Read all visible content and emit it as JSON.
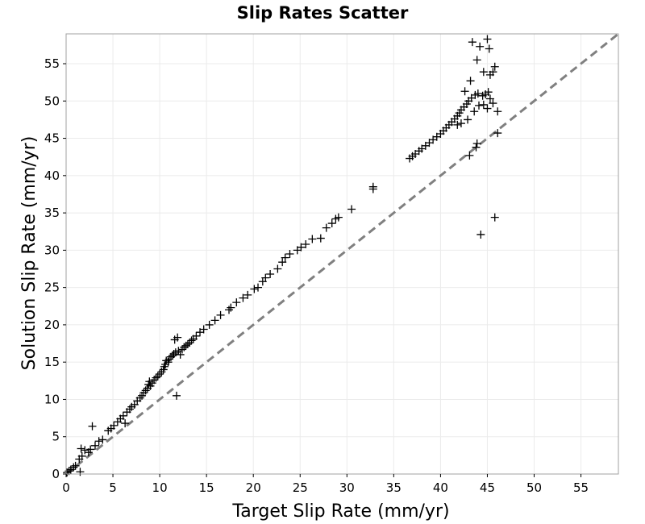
{
  "chart_data": {
    "type": "scatter",
    "title": "Slip Rates Scatter",
    "xlabel": "Target Slip Rate (mm/yr)",
    "ylabel": "Solution Slip Rate (mm/yr)",
    "xlim": [
      0,
      59
    ],
    "ylim": [
      0,
      59
    ],
    "x_ticks": [
      0,
      5,
      10,
      15,
      20,
      25,
      30,
      35,
      40,
      45,
      50,
      55
    ],
    "y_ticks": [
      0,
      5,
      10,
      15,
      20,
      25,
      30,
      35,
      40,
      45,
      50,
      55
    ],
    "grid": true,
    "legend": "none",
    "marker": "plus",
    "colors": {
      "points": "#000000",
      "reference_line": "#808080",
      "grid": "#ebebeb",
      "frame": "#a0a0a0"
    },
    "reference_line": {
      "style": "dashed",
      "points": [
        [
          0,
          0
        ],
        [
          59,
          59
        ]
      ]
    },
    "series": [
      {
        "points": [
          [
            0.1,
            0.2
          ],
          [
            0.3,
            0.4
          ],
          [
            0.5,
            0.6
          ],
          [
            0.8,
            0.9
          ],
          [
            1.0,
            1.1
          ],
          [
            1.5,
            0.3
          ],
          [
            1.4,
            2.0
          ],
          [
            1.7,
            2.4
          ],
          [
            1.6,
            3.4
          ],
          [
            2.0,
            3.2
          ],
          [
            2.4,
            2.9
          ],
          [
            2.6,
            3.3
          ],
          [
            2.8,
            6.4
          ],
          [
            3.1,
            3.8
          ],
          [
            3.5,
            4.4
          ],
          [
            3.9,
            4.6
          ],
          [
            4.5,
            5.8
          ],
          [
            4.8,
            6.1
          ],
          [
            5.1,
            6.5
          ],
          [
            5.5,
            7.0
          ],
          [
            5.8,
            7.4
          ],
          [
            6.1,
            7.8
          ],
          [
            6.3,
            6.8
          ],
          [
            6.5,
            8.3
          ],
          [
            6.8,
            8.7
          ],
          [
            7.0,
            9.0
          ],
          [
            7.3,
            9.3
          ],
          [
            7.6,
            9.8
          ],
          [
            7.9,
            10.2
          ],
          [
            8.1,
            10.5
          ],
          [
            8.3,
            10.9
          ],
          [
            8.5,
            11.2
          ],
          [
            8.7,
            11.5
          ],
          [
            8.8,
            12.0
          ],
          [
            8.9,
            12.4
          ],
          [
            9.0,
            11.8
          ],
          [
            9.2,
            12.2
          ],
          [
            9.4,
            12.6
          ],
          [
            9.6,
            12.9
          ],
          [
            9.8,
            13.1
          ],
          [
            10.0,
            13.4
          ],
          [
            10.2,
            13.7
          ],
          [
            10.4,
            14.0
          ],
          [
            10.5,
            14.4
          ],
          [
            10.6,
            14.7
          ],
          [
            10.7,
            15.2
          ],
          [
            10.9,
            15.0
          ],
          [
            11.0,
            15.4
          ],
          [
            11.2,
            15.7
          ],
          [
            11.4,
            15.9
          ],
          [
            11.5,
            16.1
          ],
          [
            11.7,
            16.3
          ],
          [
            11.8,
            10.5
          ],
          [
            11.6,
            18.0
          ],
          [
            11.9,
            18.3
          ],
          [
            12.0,
            16.5
          ],
          [
            12.2,
            16.0
          ],
          [
            12.4,
            16.7
          ],
          [
            12.6,
            17.0
          ],
          [
            12.8,
            17.2
          ],
          [
            13.0,
            17.4
          ],
          [
            13.2,
            17.6
          ],
          [
            13.4,
            17.9
          ],
          [
            13.6,
            18.1
          ],
          [
            13.9,
            18.5
          ],
          [
            14.3,
            19.0
          ],
          [
            14.7,
            19.4
          ],
          [
            15.3,
            20.0
          ],
          [
            15.9,
            20.6
          ],
          [
            16.5,
            21.3
          ],
          [
            17.4,
            22.0
          ],
          [
            17.6,
            22.3
          ],
          [
            18.2,
            23.0
          ],
          [
            18.9,
            23.6
          ],
          [
            19.4,
            24.0
          ],
          [
            20.1,
            24.8
          ],
          [
            20.5,
            25.0
          ],
          [
            21.0,
            25.8
          ],
          [
            21.3,
            26.3
          ],
          [
            21.8,
            26.8
          ],
          [
            22.6,
            27.5
          ],
          [
            23.1,
            28.4
          ],
          [
            23.4,
            29.0
          ],
          [
            23.9,
            29.5
          ],
          [
            24.7,
            30.0
          ],
          [
            25.1,
            30.4
          ],
          [
            25.6,
            30.8
          ],
          [
            26.3,
            31.5
          ],
          [
            27.2,
            31.6
          ],
          [
            27.8,
            33.0
          ],
          [
            28.4,
            33.6
          ],
          [
            28.8,
            34.2
          ],
          [
            29.1,
            34.4
          ],
          [
            30.5,
            35.5
          ],
          [
            32.8,
            38.2
          ],
          [
            32.8,
            38.5
          ],
          [
            36.7,
            42.3
          ],
          [
            37.0,
            42.6
          ],
          [
            37.3,
            42.9
          ],
          [
            37.7,
            43.3
          ],
          [
            38.0,
            43.6
          ],
          [
            38.4,
            44.0
          ],
          [
            38.8,
            44.4
          ],
          [
            39.2,
            44.8
          ],
          [
            39.6,
            45.2
          ],
          [
            40.0,
            45.6
          ],
          [
            40.3,
            46.0
          ],
          [
            40.6,
            46.4
          ],
          [
            40.9,
            46.8
          ],
          [
            41.2,
            47.2
          ],
          [
            41.5,
            47.6
          ],
          [
            41.8,
            48.0
          ],
          [
            42.0,
            48.4
          ],
          [
            42.2,
            48.8
          ],
          [
            42.5,
            49.2
          ],
          [
            42.8,
            49.6
          ],
          [
            43.0,
            50.0
          ],
          [
            43.3,
            50.4
          ],
          [
            43.7,
            50.8
          ],
          [
            44.0,
            51.0
          ],
          [
            44.5,
            50.7
          ],
          [
            44.8,
            50.9
          ],
          [
            45.1,
            51.2
          ],
          [
            45.3,
            50.3
          ],
          [
            45.6,
            49.7
          ],
          [
            41.8,
            46.8
          ],
          [
            42.2,
            47.0
          ],
          [
            42.9,
            47.5
          ],
          [
            43.6,
            48.6
          ],
          [
            44.1,
            49.4
          ],
          [
            44.6,
            49.5
          ],
          [
            45.0,
            49.0
          ],
          [
            43.1,
            42.7
          ],
          [
            43.8,
            43.8
          ],
          [
            43.9,
            44.3
          ],
          [
            44.3,
            32.1
          ],
          [
            45.8,
            34.4
          ],
          [
            46.1,
            45.7
          ],
          [
            46.1,
            48.6
          ],
          [
            43.4,
            57.9
          ],
          [
            44.2,
            57.3
          ],
          [
            45.0,
            58.3
          ],
          [
            45.2,
            57.0
          ],
          [
            43.9,
            55.5
          ],
          [
            44.6,
            53.9
          ],
          [
            45.6,
            53.9
          ],
          [
            45.8,
            54.6
          ],
          [
            45.3,
            53.5
          ],
          [
            42.6,
            51.3
          ],
          [
            43.2,
            52.7
          ]
        ]
      }
    ]
  }
}
